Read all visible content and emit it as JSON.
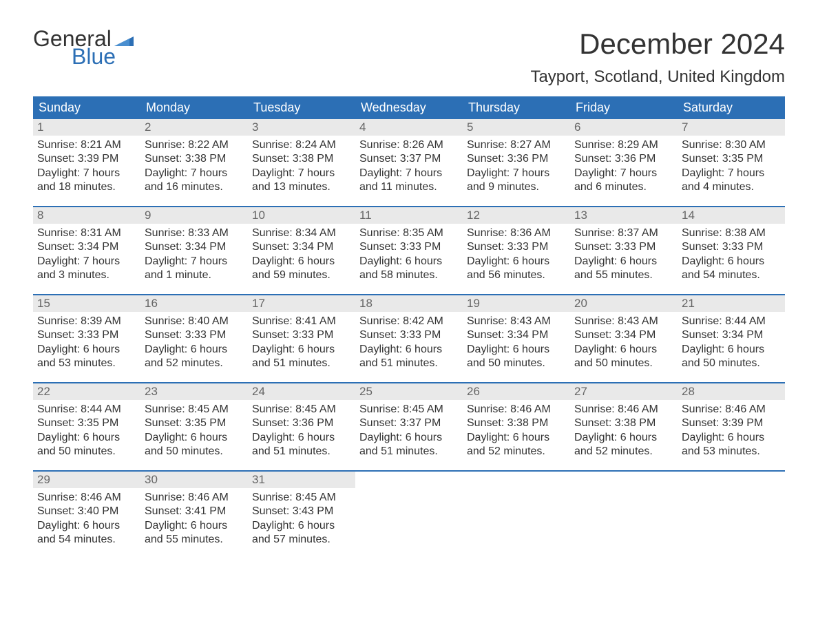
{
  "logo": {
    "text_a": "General",
    "text_b": "Blue",
    "accent_color": "#2c6fb5"
  },
  "title": "December 2024",
  "location": "Tayport, Scotland, United Kingdom",
  "colors": {
    "header_bg": "#2c6fb5",
    "header_text": "#ffffff",
    "daynum_bg": "#e9e9e9",
    "daynum_text": "#666666",
    "body_text": "#333333",
    "row_border": "#2c6fb5"
  },
  "weekdays": [
    "Sunday",
    "Monday",
    "Tuesday",
    "Wednesday",
    "Thursday",
    "Friday",
    "Saturday"
  ],
  "weeks": [
    [
      {
        "day": "1",
        "sunrise": "8:21 AM",
        "sunset": "3:39 PM",
        "daylight_a": "Daylight: 7 hours",
        "daylight_b": "and 18 minutes."
      },
      {
        "day": "2",
        "sunrise": "8:22 AM",
        "sunset": "3:38 PM",
        "daylight_a": "Daylight: 7 hours",
        "daylight_b": "and 16 minutes."
      },
      {
        "day": "3",
        "sunrise": "8:24 AM",
        "sunset": "3:38 PM",
        "daylight_a": "Daylight: 7 hours",
        "daylight_b": "and 13 minutes."
      },
      {
        "day": "4",
        "sunrise": "8:26 AM",
        "sunset": "3:37 PM",
        "daylight_a": "Daylight: 7 hours",
        "daylight_b": "and 11 minutes."
      },
      {
        "day": "5",
        "sunrise": "8:27 AM",
        "sunset": "3:36 PM",
        "daylight_a": "Daylight: 7 hours",
        "daylight_b": "and 9 minutes."
      },
      {
        "day": "6",
        "sunrise": "8:29 AM",
        "sunset": "3:36 PM",
        "daylight_a": "Daylight: 7 hours",
        "daylight_b": "and 6 minutes."
      },
      {
        "day": "7",
        "sunrise": "8:30 AM",
        "sunset": "3:35 PM",
        "daylight_a": "Daylight: 7 hours",
        "daylight_b": "and 4 minutes."
      }
    ],
    [
      {
        "day": "8",
        "sunrise": "8:31 AM",
        "sunset": "3:34 PM",
        "daylight_a": "Daylight: 7 hours",
        "daylight_b": "and 3 minutes."
      },
      {
        "day": "9",
        "sunrise": "8:33 AM",
        "sunset": "3:34 PM",
        "daylight_a": "Daylight: 7 hours",
        "daylight_b": "and 1 minute."
      },
      {
        "day": "10",
        "sunrise": "8:34 AM",
        "sunset": "3:34 PM",
        "daylight_a": "Daylight: 6 hours",
        "daylight_b": "and 59 minutes."
      },
      {
        "day": "11",
        "sunrise": "8:35 AM",
        "sunset": "3:33 PM",
        "daylight_a": "Daylight: 6 hours",
        "daylight_b": "and 58 minutes."
      },
      {
        "day": "12",
        "sunrise": "8:36 AM",
        "sunset": "3:33 PM",
        "daylight_a": "Daylight: 6 hours",
        "daylight_b": "and 56 minutes."
      },
      {
        "day": "13",
        "sunrise": "8:37 AM",
        "sunset": "3:33 PM",
        "daylight_a": "Daylight: 6 hours",
        "daylight_b": "and 55 minutes."
      },
      {
        "day": "14",
        "sunrise": "8:38 AM",
        "sunset": "3:33 PM",
        "daylight_a": "Daylight: 6 hours",
        "daylight_b": "and 54 minutes."
      }
    ],
    [
      {
        "day": "15",
        "sunrise": "8:39 AM",
        "sunset": "3:33 PM",
        "daylight_a": "Daylight: 6 hours",
        "daylight_b": "and 53 minutes."
      },
      {
        "day": "16",
        "sunrise": "8:40 AM",
        "sunset": "3:33 PM",
        "daylight_a": "Daylight: 6 hours",
        "daylight_b": "and 52 minutes."
      },
      {
        "day": "17",
        "sunrise": "8:41 AM",
        "sunset": "3:33 PM",
        "daylight_a": "Daylight: 6 hours",
        "daylight_b": "and 51 minutes."
      },
      {
        "day": "18",
        "sunrise": "8:42 AM",
        "sunset": "3:33 PM",
        "daylight_a": "Daylight: 6 hours",
        "daylight_b": "and 51 minutes."
      },
      {
        "day": "19",
        "sunrise": "8:43 AM",
        "sunset": "3:34 PM",
        "daylight_a": "Daylight: 6 hours",
        "daylight_b": "and 50 minutes."
      },
      {
        "day": "20",
        "sunrise": "8:43 AM",
        "sunset": "3:34 PM",
        "daylight_a": "Daylight: 6 hours",
        "daylight_b": "and 50 minutes."
      },
      {
        "day": "21",
        "sunrise": "8:44 AM",
        "sunset": "3:34 PM",
        "daylight_a": "Daylight: 6 hours",
        "daylight_b": "and 50 minutes."
      }
    ],
    [
      {
        "day": "22",
        "sunrise": "8:44 AM",
        "sunset": "3:35 PM",
        "daylight_a": "Daylight: 6 hours",
        "daylight_b": "and 50 minutes."
      },
      {
        "day": "23",
        "sunrise": "8:45 AM",
        "sunset": "3:35 PM",
        "daylight_a": "Daylight: 6 hours",
        "daylight_b": "and 50 minutes."
      },
      {
        "day": "24",
        "sunrise": "8:45 AM",
        "sunset": "3:36 PM",
        "daylight_a": "Daylight: 6 hours",
        "daylight_b": "and 51 minutes."
      },
      {
        "day": "25",
        "sunrise": "8:45 AM",
        "sunset": "3:37 PM",
        "daylight_a": "Daylight: 6 hours",
        "daylight_b": "and 51 minutes."
      },
      {
        "day": "26",
        "sunrise": "8:46 AM",
        "sunset": "3:38 PM",
        "daylight_a": "Daylight: 6 hours",
        "daylight_b": "and 52 minutes."
      },
      {
        "day": "27",
        "sunrise": "8:46 AM",
        "sunset": "3:38 PM",
        "daylight_a": "Daylight: 6 hours",
        "daylight_b": "and 52 minutes."
      },
      {
        "day": "28",
        "sunrise": "8:46 AM",
        "sunset": "3:39 PM",
        "daylight_a": "Daylight: 6 hours",
        "daylight_b": "and 53 minutes."
      }
    ],
    [
      {
        "day": "29",
        "sunrise": "8:46 AM",
        "sunset": "3:40 PM",
        "daylight_a": "Daylight: 6 hours",
        "daylight_b": "and 54 minutes."
      },
      {
        "day": "30",
        "sunrise": "8:46 AM",
        "sunset": "3:41 PM",
        "daylight_a": "Daylight: 6 hours",
        "daylight_b": "and 55 minutes."
      },
      {
        "day": "31",
        "sunrise": "8:45 AM",
        "sunset": "3:43 PM",
        "daylight_a": "Daylight: 6 hours",
        "daylight_b": "and 57 minutes."
      },
      null,
      null,
      null,
      null
    ]
  ],
  "labels": {
    "sunrise_prefix": "Sunrise: ",
    "sunset_prefix": "Sunset: "
  }
}
